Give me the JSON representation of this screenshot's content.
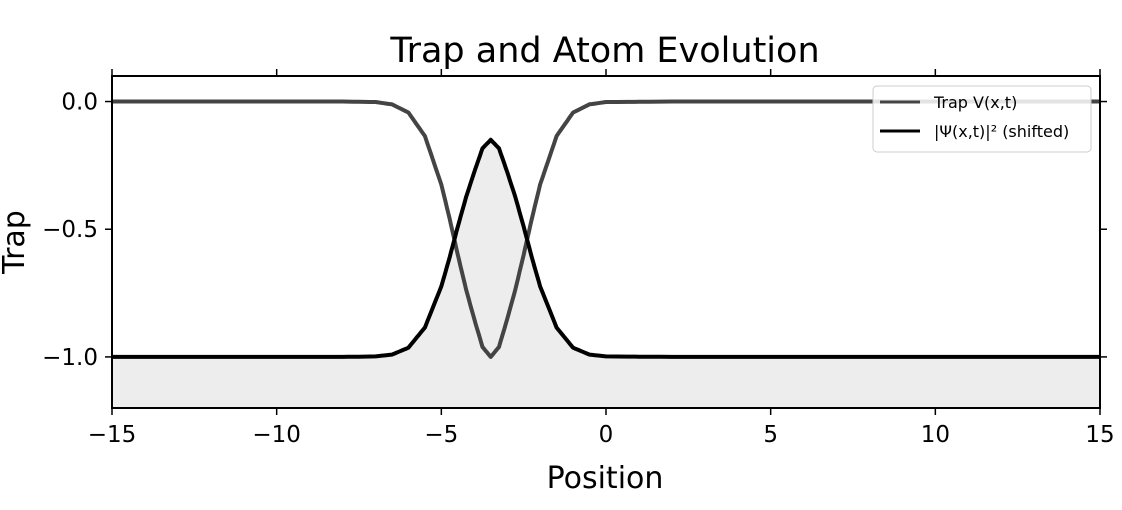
{
  "chart_data": {
    "type": "line",
    "title": "Trap and Atom Evolution",
    "xlabel": "Position",
    "ylabel": "Trap",
    "xlim": [
      -15,
      15
    ],
    "ylim": [
      -1.2,
      0.1
    ],
    "xticks": [
      {
        "value": -15,
        "label": "−15"
      },
      {
        "value": -10,
        "label": "−10"
      },
      {
        "value": -5,
        "label": "−5"
      },
      {
        "value": 0,
        "label": "0"
      },
      {
        "value": 5,
        "label": "5"
      },
      {
        "value": 10,
        "label": "10"
      },
      {
        "value": 15,
        "label": "15"
      }
    ],
    "yticks": [
      {
        "value": 0.0,
        "label": "0.0"
      },
      {
        "value": -0.5,
        "label": "−0.5"
      },
      {
        "value": -1.0,
        "label": "−1.0"
      }
    ],
    "grid": false,
    "legend_position": "top-right",
    "series": [
      {
        "name": "Trap V(x,t)",
        "color": "#444444",
        "x": [
          -15,
          -10,
          -8,
          -7,
          -6.5,
          -6,
          -5.5,
          -5,
          -4.75,
          -4.5,
          -4.25,
          -4,
          -3.75,
          -3.5,
          -3.25,
          -3,
          -2.75,
          -2.5,
          -2.25,
          -2,
          -1.5,
          -1,
          -0.5,
          0,
          2,
          5,
          10,
          15
        ],
        "y": [
          0,
          0,
          0,
          -0.002,
          -0.011,
          -0.043,
          -0.135,
          -0.325,
          -0.458,
          -0.6,
          -0.735,
          -0.852,
          -0.961,
          -1.0,
          -0.961,
          -0.852,
          -0.735,
          -0.6,
          -0.458,
          -0.325,
          -0.135,
          -0.043,
          -0.011,
          -0.002,
          0,
          0,
          0,
          0
        ]
      },
      {
        "name": "|Ψ(x,t)|² (shifted)",
        "color": "#000000",
        "x": [
          -15,
          -10,
          -8,
          -7,
          -6.5,
          -6,
          -5.5,
          -5,
          -4.75,
          -4.5,
          -4.25,
          -4,
          -3.75,
          -3.5,
          -3.25,
          -3,
          -2.75,
          -2.5,
          -2.25,
          -2,
          -1.5,
          -1,
          -0.5,
          0,
          2,
          5,
          10,
          15
        ],
        "y": [
          -1.0,
          -1.0,
          -1.0,
          -0.998,
          -0.991,
          -0.964,
          -0.885,
          -0.724,
          -0.611,
          -0.49,
          -0.375,
          -0.276,
          -0.183,
          -0.15,
          -0.183,
          -0.276,
          -0.375,
          -0.49,
          -0.611,
          -0.724,
          -0.885,
          -0.964,
          -0.991,
          -0.998,
          -1.0,
          -1.0,
          -1.0,
          -1.0
        ]
      }
    ],
    "fill_color": "#ededed"
  }
}
